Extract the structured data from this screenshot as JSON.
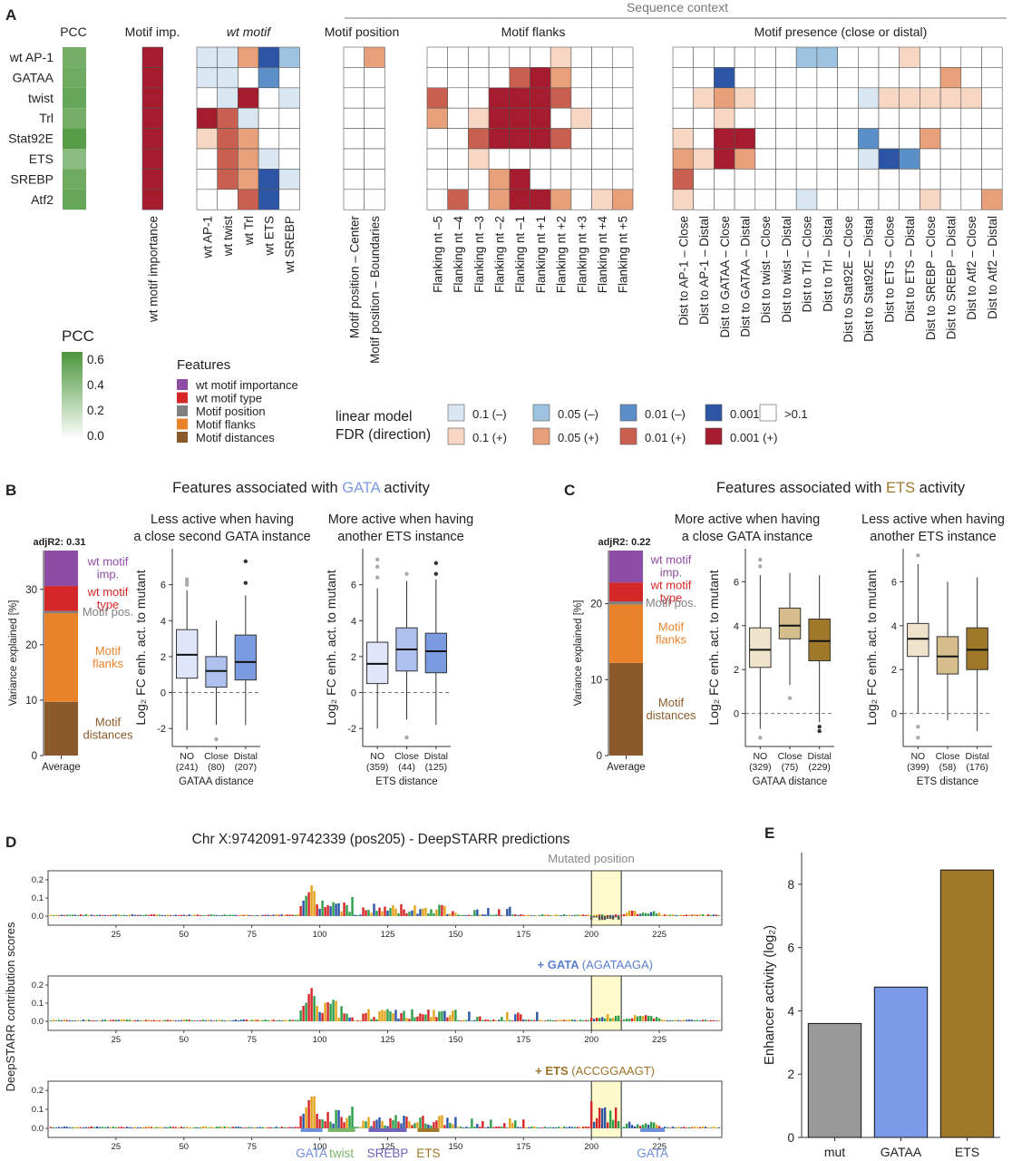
{
  "panelA": {
    "letter": "A",
    "pcc_header": "PCC",
    "imp_header": "Motif imp.",
    "wtmotif_header": "wt motif",
    "position_header": "Motif position",
    "flanks_header": "Motif flanks",
    "presence_header": "Motif presence (close or distal)",
    "context_header": "Sequence context",
    "rows": [
      "wt AP-1",
      "GATAA",
      "twist",
      "Trl",
      "Stat92E",
      "ETS",
      "SREBP",
      "Atf2"
    ],
    "pcc_values": [
      0.5,
      0.52,
      0.55,
      0.5,
      0.6,
      0.42,
      0.52,
      0.55
    ],
    "imp_cols": [
      "wt motif importance"
    ],
    "imp_cells": [
      [
        4
      ],
      [
        4
      ],
      [
        4
      ],
      [
        4
      ],
      [
        4
      ],
      [
        4
      ],
      [
        4
      ],
      [
        4
      ]
    ],
    "wt_cols": [
      "wt AP-1",
      "wt twist",
      "wt Trl",
      "wt ETS",
      "wt SREBP"
    ],
    "wt_cells": [
      [
        -1,
        -1,
        2,
        -4,
        -2
      ],
      [
        -1,
        -1,
        0,
        -3,
        0
      ],
      [
        0,
        -1,
        4,
        0,
        -1
      ],
      [
        4,
        3,
        -1,
        0,
        0
      ],
      [
        1,
        3,
        2,
        0,
        0
      ],
      [
        0,
        3,
        2,
        -1,
        0
      ],
      [
        0,
        3,
        2,
        -4,
        -1
      ],
      [
        0,
        0,
        3,
        -4,
        0
      ]
    ],
    "pos_cols": [
      "Motif position – Center",
      "Motif position – Boundaries"
    ],
    "pos_cells": [
      [
        0,
        2
      ],
      [
        0,
        0
      ],
      [
        0,
        0
      ],
      [
        0,
        0
      ],
      [
        0,
        0
      ],
      [
        0,
        0
      ],
      [
        0,
        0
      ],
      [
        0,
        0
      ]
    ],
    "flank_cols": [
      "Flanking nt –5",
      "Flanking nt –4",
      "Flanking nt –3",
      "Flanking nt –2",
      "Flanking nt –1",
      "Flanking nt +1",
      "Flanking nt +2",
      "Flanking nt +3",
      "Flanking nt +4",
      "Flanking nt +5"
    ],
    "flank_cells": [
      [
        0,
        0,
        0,
        0,
        0,
        0,
        1,
        0,
        0,
        0
      ],
      [
        0,
        0,
        0,
        0,
        3,
        4,
        2,
        0,
        0,
        0
      ],
      [
        3,
        0,
        0,
        4,
        4,
        4,
        3,
        0,
        0,
        0
      ],
      [
        2,
        0,
        1,
        4,
        4,
        4,
        0,
        1,
        0,
        0
      ],
      [
        0,
        0,
        3,
        4,
        4,
        4,
        3,
        0,
        0,
        0
      ],
      [
        0,
        0,
        1,
        0,
        0,
        0,
        0,
        0,
        0,
        0
      ],
      [
        0,
        0,
        0,
        2,
        4,
        0,
        0,
        0,
        0,
        0
      ],
      [
        0,
        3,
        0,
        2,
        4,
        4,
        2,
        0,
        1,
        2
      ]
    ],
    "presence_cols": [
      "Dist to AP-1 – Close",
      "Dist to AP-1 – Distal",
      "Dist to GATAA – Close",
      "Dist to GATAA – Distal",
      "Dist to twist – Close",
      "Dist to twist – Distal",
      "Dist to Trl – Close",
      "Dist to Trl – Distal",
      "Dist to Stat92E – Close",
      "Dist to Stat92E – Distal",
      "Dist to ETS – Close",
      "Dist to ETS – Distal",
      "Dist to SREBP – Close",
      "Dist to SREBP – Distal",
      "Dist to Atf2 – Close",
      "Dist to Atf2 – Distal"
    ],
    "presence_cells": [
      [
        0,
        0,
        0,
        0,
        0,
        0,
        -2,
        -2,
        0,
        0,
        0,
        1,
        0,
        0,
        0,
        0
      ],
      [
        0,
        0,
        -4,
        0,
        0,
        0,
        0,
        0,
        0,
        0,
        0,
        0,
        0,
        2,
        0,
        0
      ],
      [
        0,
        1,
        2,
        1,
        0,
        0,
        0,
        0,
        0,
        -1,
        1,
        1,
        1,
        1,
        1,
        0
      ],
      [
        0,
        0,
        1,
        0,
        0,
        0,
        0,
        0,
        0,
        0,
        0,
        0,
        0,
        0,
        0,
        0
      ],
      [
        1,
        0,
        4,
        4,
        0,
        0,
        0,
        0,
        0,
        -3,
        0,
        0,
        2,
        0,
        0,
        0
      ],
      [
        2,
        1,
        4,
        2,
        0,
        0,
        0,
        0,
        0,
        -1,
        -4,
        -3,
        0,
        0,
        0,
        0
      ],
      [
        3,
        0,
        0,
        0,
        0,
        0,
        0,
        0,
        0,
        0,
        0,
        0,
        0,
        0,
        0,
        0
      ],
      [
        1,
        0,
        0,
        0,
        0,
        0,
        -1,
        0,
        0,
        0,
        0,
        0,
        1,
        0,
        0,
        2
      ]
    ],
    "pcc_legend": {
      "title": "PCC",
      "ticks": [
        "0.6",
        "0.4",
        "0.2",
        "0.0"
      ]
    },
    "features_legend": {
      "title": "Features",
      "items": [
        {
          "label": "wt motif importance",
          "color": "#8E4DA4"
        },
        {
          "label": "wt motif type",
          "color": "#D62728"
        },
        {
          "label": "Motif position",
          "color": "#808080"
        },
        {
          "label": "Motif flanks",
          "color": "#E8832A"
        },
        {
          "label": "Motif distances",
          "color": "#8B5A2B"
        }
      ]
    },
    "fdr_legend": {
      "title1": "linear model",
      "title2": "FDR (direction)",
      "items_neg": [
        {
          "label": "0.1 (–)",
          "color": "#D9E7F3"
        },
        {
          "label": "0.05 (–)",
          "color": "#9EC3E0"
        },
        {
          "label": "0.01 (–)",
          "color": "#5B8FC8"
        },
        {
          "label": "0.001 (–)",
          "color": "#2D55A6"
        }
      ],
      "items_pos": [
        {
          "label": "0.1 (+)",
          "color": "#F8D6C4"
        },
        {
          "label": "0.05 (+)",
          "color": "#E8A07A"
        },
        {
          "label": "0.01 (+)",
          "color": "#C95F4F"
        },
        {
          "label": "0.001 (+)",
          "color": "#A51C2E"
        }
      ],
      "none": {
        "label": ">0.1",
        "color": "#FFFFFF"
      }
    }
  },
  "panelB": {
    "letter": "B",
    "title_pre": "Features associated with ",
    "title_hl": "GATA",
    "title_post": " activity",
    "hl_color": "#7B9BE0",
    "adj": "adjR2: 0.31",
    "ylabel": "Variance explained [%]",
    "xlabel": "Average",
    "yticks": [
      "0",
      "10",
      "20",
      "30"
    ],
    "bar": {
      "ymax": 37,
      "segments": [
        {
          "label": "Motif distances",
          "value": 9.7,
          "color": "#8B5A2B"
        },
        {
          "label": "Motif flanks",
          "value": 16.0,
          "color": "#E8832A"
        },
        {
          "label": "Motif pos.",
          "value": 0.4,
          "color": "#808080"
        },
        {
          "label": "wt motif type",
          "value": 4.5,
          "color": "#D62728"
        },
        {
          "label": "wt motif imp.",
          "value": 6.4,
          "color": "#8E4DA4"
        }
      ]
    },
    "seg_labels": [
      {
        "line1": "wt motif",
        "line2": "imp.",
        "color": "#8E4DA4"
      },
      {
        "line1": "wt motif",
        "line2": "type",
        "color": "#D62728"
      },
      {
        "line1": "Motif pos.",
        "line2": "",
        "color": "#808080"
      },
      {
        "line1": "Motif",
        "line2": "flanks",
        "color": "#E8832A"
      },
      {
        "line1": "Motif",
        "line2": "distances",
        "color": "#8B5A2B"
      }
    ],
    "box1": {
      "sub1": "Less active when having",
      "sub2": "a close second GATA instance",
      "ylabel": "Log₂ FC enh. act. to mutant",
      "xlabel": "GATAA distance",
      "cats": [
        "NO",
        "Close",
        "Distal"
      ],
      "ns": [
        "(241)",
        "(80)",
        "(207)"
      ],
      "boxes": [
        {
          "q1": 0.8,
          "med": 2.1,
          "q3": 3.5,
          "lo": -2.1,
          "hi": 5.7,
          "color": "#DEE6F8",
          "outliers": [
            6.0,
            6.15,
            6.3
          ]
        },
        {
          "q1": 0.3,
          "med": 1.2,
          "q3": 2.0,
          "lo": -1.8,
          "hi": 4.0,
          "color": "#AEC1EE",
          "outliers": [
            -2.6
          ]
        },
        {
          "q1": 0.7,
          "med": 1.7,
          "q3": 3.2,
          "lo": -1.8,
          "hi": 5.4,
          "color": "#7B9BE0",
          "outliers": [
            6.1,
            7.3
          ]
        }
      ],
      "ylim": [
        -3,
        8
      ],
      "yticks": [
        -2,
        0,
        2,
        4,
        6
      ]
    },
    "box2": {
      "sub1": "More active when having",
      "sub2": "another ETS instance",
      "ylabel": "Log₂ FC enh. act. to mutant",
      "xlabel": "ETS distance",
      "cats": [
        "NO",
        "Close",
        "Distal"
      ],
      "ns": [
        "(359)",
        "(44)",
        "(125)"
      ],
      "boxes": [
        {
          "q1": 0.5,
          "med": 1.6,
          "q3": 2.8,
          "lo": -2.0,
          "hi": 5.8,
          "color": "#DEE6F8",
          "outliers": [
            6.4,
            7.0,
            7.4
          ]
        },
        {
          "q1": 1.2,
          "med": 2.4,
          "q3": 3.6,
          "lo": -1.5,
          "hi": 6.2,
          "color": "#AEC1EE",
          "outliers": [
            -2.5,
            6.6
          ]
        },
        {
          "q1": 1.1,
          "med": 2.3,
          "q3": 3.3,
          "lo": -1.8,
          "hi": 6.3,
          "color": "#7B9BE0",
          "outliers": [
            6.6,
            7.2
          ]
        }
      ],
      "ylim": [
        -3,
        8
      ],
      "yticks": [
        -2,
        0,
        2,
        4,
        6
      ]
    }
  },
  "panelC": {
    "letter": "C",
    "title_pre": "Features associated with ",
    "title_hl": "ETS",
    "title_post": " activity",
    "hl_color": "#A0782A",
    "adj": "adjR2: 0.22",
    "ylabel": "Variance explained [%]",
    "xlabel": "Average",
    "yticks": [
      "0",
      "10",
      "20"
    ],
    "bar": {
      "ymax": 27,
      "segments": [
        {
          "label": "Motif distances",
          "value": 12.2,
          "color": "#8B5A2B"
        },
        {
          "label": "Motif flanks",
          "value": 7.7,
          "color": "#E8832A"
        },
        {
          "label": "Motif pos.",
          "value": 0.4,
          "color": "#808080"
        },
        {
          "label": "wt motif type",
          "value": 2.5,
          "color": "#D62728"
        },
        {
          "label": "wt motif imp.",
          "value": 4.2,
          "color": "#8E4DA4"
        }
      ]
    },
    "seg_labels": [
      {
        "line1": "wt motif",
        "line2": "imp.",
        "color": "#8E4DA4"
      },
      {
        "line1": "wt motif",
        "line2": "type",
        "color": "#D62728"
      },
      {
        "line1": "Motif pos.",
        "line2": "",
        "color": "#808080"
      },
      {
        "line1": "Motif",
        "line2": "flanks",
        "color": "#E8832A"
      },
      {
        "line1": "Motif",
        "line2": "distances",
        "color": "#8B5A2B"
      }
    ],
    "box1": {
      "sub1": "More active when having",
      "sub2": "a close GATA instance",
      "ylabel": "Log₂ FC enh. act. to mutant",
      "xlabel": "GATAA distance",
      "cats": [
        "NO",
        "Close",
        "Distal"
      ],
      "ns": [
        "(329)",
        "(75)",
        "(229)"
      ],
      "boxes": [
        {
          "q1": 2.1,
          "med": 2.9,
          "q3": 3.9,
          "lo": -0.7,
          "hi": 6.3,
          "color": "#EFE3CC",
          "outliers": [
            -1.1,
            6.7,
            7.0
          ]
        },
        {
          "q1": 3.4,
          "med": 4.0,
          "q3": 4.8,
          "lo": 1.3,
          "hi": 6.4,
          "color": "#D6BE8C",
          "outliers": [
            0.7
          ]
        },
        {
          "q1": 2.4,
          "med": 3.3,
          "q3": 4.3,
          "lo": -0.4,
          "hi": 6.3,
          "color": "#A0782A",
          "outliers": [
            -0.6,
            -0.8
          ]
        }
      ],
      "ylim": [
        -1.5,
        7.5
      ],
      "yticks": [
        0,
        2,
        4,
        6
      ]
    },
    "box2": {
      "sub1": "Less active when having",
      "sub2": "another ETS instance",
      "ylabel": "Log₂ FC enh. act. to mutant",
      "xlabel": "ETS distance",
      "cats": [
        "NO",
        "Close",
        "Distal"
      ],
      "ns": [
        "(399)",
        "(58)",
        "(176)"
      ],
      "boxes": [
        {
          "q1": 2.6,
          "med": 3.4,
          "q3": 4.1,
          "lo": 0.0,
          "hi": 6.8,
          "color": "#EFE3CC",
          "outliers": [
            -0.6,
            -1.1,
            7.2
          ]
        },
        {
          "q1": 1.8,
          "med": 2.6,
          "q3": 3.5,
          "lo": -0.3,
          "hi": 6.0,
          "color": "#D6BE8C",
          "outliers": []
        },
        {
          "q1": 2.0,
          "med": 2.9,
          "q3": 3.9,
          "lo": -0.8,
          "hi": 6.2,
          "color": "#A0782A",
          "outliers": []
        }
      ],
      "ylim": [
        -1.5,
        7.5
      ],
      "yticks": [
        0,
        2,
        4,
        6
      ]
    }
  },
  "panelD": {
    "letter": "D",
    "title": "Chr X:9742091-9742339 (pos205) - DeepSTARR predictions",
    "mutated": "Mutated position",
    "ylabel": "DeepSTARR contribution scores",
    "xticks": [
      25,
      50,
      75,
      100,
      125,
      150,
      175,
      200,
      225
    ],
    "yticks": [
      "0.2",
      "0.1",
      "0.0"
    ],
    "xmax": 248,
    "highlight": [
      200,
      211
    ],
    "track2_pre": "+ GATA",
    "track2_seq": "(AGATAAGA)",
    "track2_color": "#5B7FD0",
    "track3_pre": "+ ETS",
    "track3_seq": "(ACCGGAAGT)",
    "track3_color": "#9C7226",
    "motif_labels": [
      {
        "label": "GATA",
        "color": "#6E8FDB",
        "start": 93,
        "end": 101
      },
      {
        "label": "twist",
        "color": "#7BB668",
        "start": 103,
        "end": 113
      },
      {
        "label": "SREBP",
        "color": "#6E64B8",
        "start": 118,
        "end": 132
      },
      {
        "label": "ETS",
        "color": "#A0782A",
        "start": 136,
        "end": 144
      },
      {
        "label": "GATA",
        "color": "#6E8FDB",
        "start": 218,
        "end": 227
      }
    ]
  },
  "panelE": {
    "letter": "E",
    "ylabel": "Enhancer activity (log₂)",
    "chart_data": {
      "type": "bar",
      "categories": [
        "mut",
        "GATAA",
        "ETS"
      ],
      "values": [
        3.6,
        4.75,
        8.45
      ],
      "colors": [
        "#999999",
        "#7B9BE8",
        "#A0782A"
      ],
      "ylim": [
        0,
        9
      ],
      "yticks": [
        0,
        2,
        4,
        6,
        8
      ]
    }
  },
  "chart_data": [
    {
      "type": "bar",
      "name": "E",
      "categories": [
        "mut",
        "GATAA",
        "ETS"
      ],
      "values": [
        3.6,
        4.75,
        8.45
      ],
      "ylim": [
        0,
        9
      ]
    },
    {
      "type": "bar",
      "name": "B",
      "categories": [
        "Average"
      ],
      "series": [
        {
          "name": "Motif distances",
          "values": [
            9.7
          ]
        },
        {
          "name": "Motif flanks",
          "values": [
            16.0
          ]
        },
        {
          "name": "Motif pos.",
          "values": [
            0.4
          ]
        },
        {
          "name": "wt motif type",
          "values": [
            4.5
          ]
        },
        {
          "name": "wt motif imp.",
          "values": [
            6.4
          ]
        }
      ]
    },
    {
      "type": "bar",
      "name": "C",
      "categories": [
        "Average"
      ],
      "series": [
        {
          "name": "Motif distances",
          "values": [
            12.2
          ]
        },
        {
          "name": "Motif flanks",
          "values": [
            7.7
          ]
        },
        {
          "name": "Motif pos.",
          "values": [
            0.4
          ]
        },
        {
          "name": "wt motif type",
          "values": [
            2.5
          ]
        },
        {
          "name": "wt motif imp.",
          "values": [
            4.2
          ]
        }
      ]
    }
  ]
}
